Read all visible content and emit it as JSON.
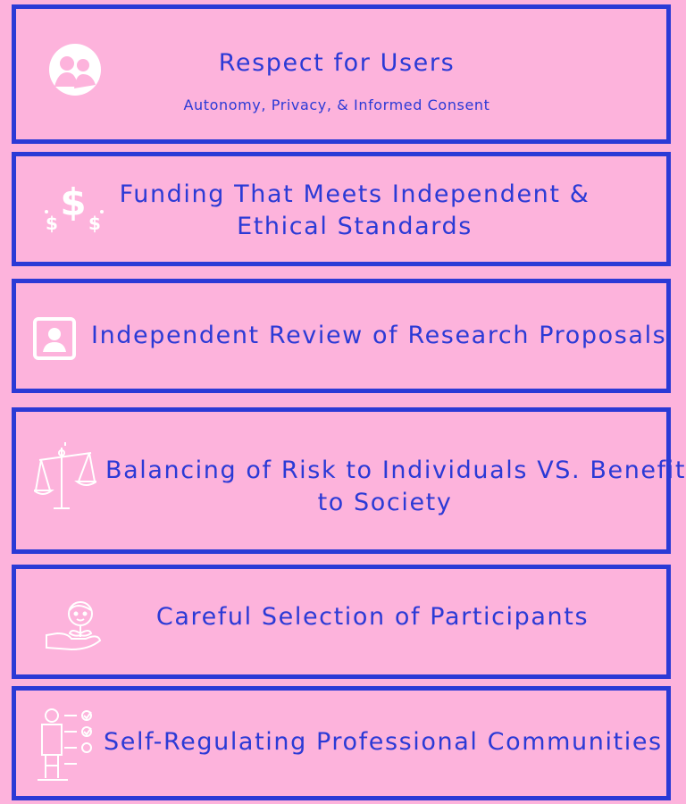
{
  "colors": {
    "background": "#fdb3dc",
    "accent": "#2b3ad6",
    "icon": "#ffffff"
  },
  "principles": [
    {
      "title": "Respect for Users",
      "subtitle": "Autonomy, Privacy, & Informed Consent",
      "icon": "people-circle-icon"
    },
    {
      "title_lines": [
        "Funding That Meets Independent &",
        "Ethical Standards"
      ],
      "icon": "dollar-signs-icon"
    },
    {
      "title": "Independent Review of Research Proposals",
      "icon": "profile-card-icon"
    },
    {
      "title_lines": [
        "Balancing of Risk to Individuals VS. Benefit",
        "to Society"
      ],
      "icon": "balance-scale-icon"
    },
    {
      "title": "Careful Selection of Participants",
      "icon": "hand-holding-person-icon"
    },
    {
      "title": "Self-Regulating Professional Communities",
      "icon": "person-checklist-icon"
    }
  ]
}
